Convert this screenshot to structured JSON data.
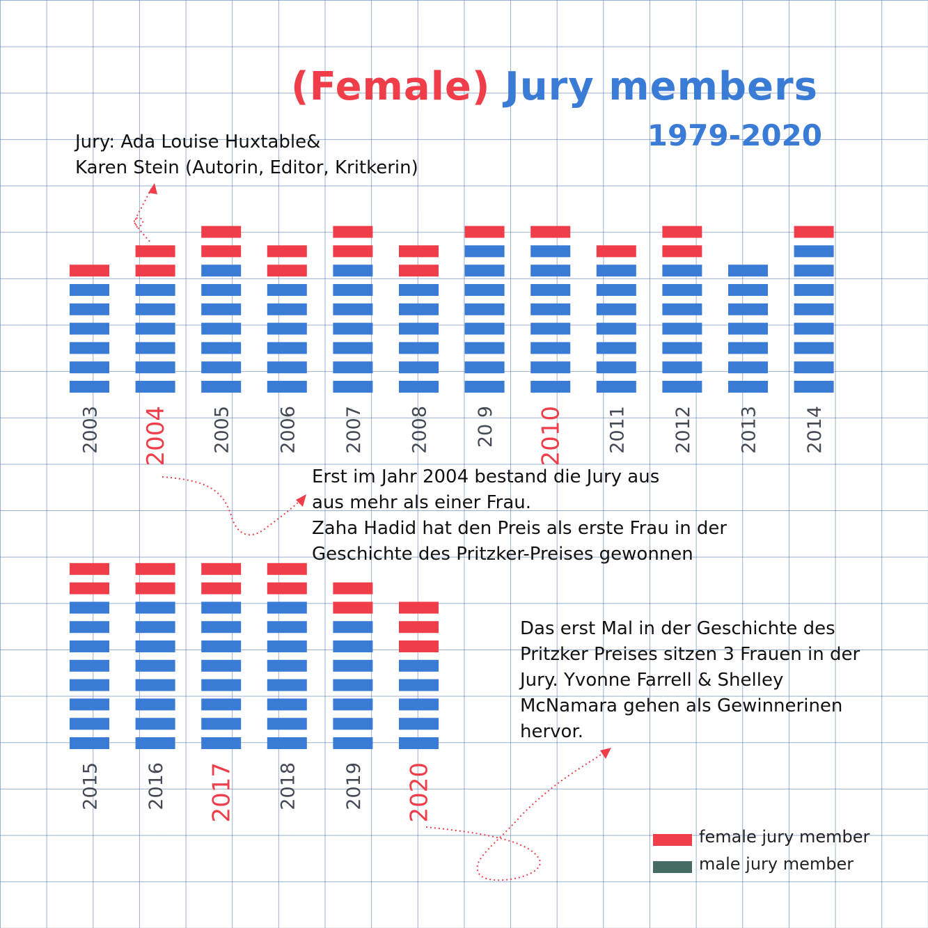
{
  "title": {
    "part1": "(Female)",
    "part2": "Jury members"
  },
  "subtitle": "1979-2020",
  "colors": {
    "female": "#ef3e4a",
    "male": "#3a7bd5",
    "male_legend": "#456b63",
    "year_text": "#444a55",
    "highlight_text": "#ef3e4a",
    "grid": "#5a80b8"
  },
  "notes": {
    "jury_2004": [
      "Jury: Ada Louise Huxtable&",
      "Karen Stein (Autorin, Editor, Kritkerin)"
    ],
    "first_woman": [
      "Erst im Jahr 2004 bestand die Jury aus",
      "aus mehr als einer Frau.",
      "Zaha Hadid hat den Preis als erste Frau in der",
      "Geschichte des Pritzker-Preises gewonnen"
    ],
    "three_women": [
      "Das erst Mal in der Geschichte des",
      "Pritzker Preises sitzen 3 Frauen in der",
      "Jury. Yvonne Farrell & Shelley",
      "McNamara gehen als Gewinnerinen",
      "hervor."
    ]
  },
  "legend": [
    {
      "label": "female jury member",
      "color": "#ef3e4a"
    },
    {
      "label": "male jury member",
      "color": "#456b63"
    }
  ],
  "chart_data": {
    "type": "bar",
    "stacked": true,
    "unit": "jury members (one block per person)",
    "categories": [
      "2003",
      "2004",
      "2005",
      "2006",
      "2007",
      "2008",
      "2009",
      "2010",
      "2011",
      "2012",
      "2013",
      "2014",
      "2015",
      "2016",
      "2017",
      "2018",
      "2019",
      "2020"
    ],
    "tick_labels": [
      "2003",
      "2004",
      "2005",
      "2006",
      "2007",
      "2008",
      "20 9",
      "2010",
      "2011",
      "2012",
      "2013",
      "2014",
      "2015",
      "2016",
      "2017",
      "2018",
      "2019",
      "2020"
    ],
    "highlighted": [
      "2004",
      "2010",
      "2017",
      "2020"
    ],
    "series": [
      {
        "name": "male jury member",
        "values": [
          6,
          6,
          7,
          6,
          7,
          6,
          8,
          8,
          7,
          7,
          7,
          8,
          8,
          8,
          8,
          8,
          7,
          5
        ]
      },
      {
        "name": "female jury member",
        "values": [
          1,
          2,
          2,
          2,
          2,
          2,
          1,
          1,
          1,
          2,
          0,
          1,
          2,
          2,
          2,
          2,
          2,
          3
        ]
      }
    ]
  }
}
